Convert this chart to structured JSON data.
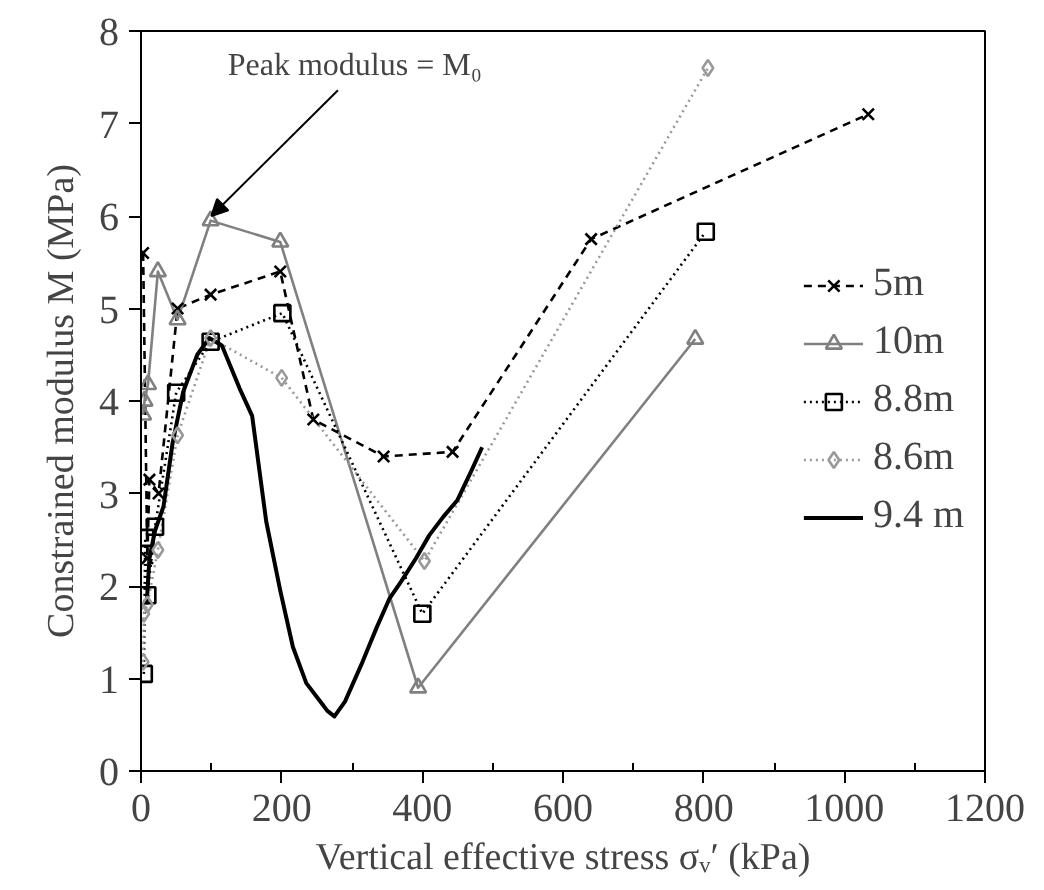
{
  "chart_data": {
    "type": "line",
    "xlabel": "Vertical effective stress σᵥ′ (kPa)",
    "ylabel": "Constrained modulus M (MPa)",
    "xlim": [
      0,
      1200
    ],
    "xticks": [
      0,
      200,
      400,
      600,
      800,
      1000,
      1200
    ],
    "ylim": [
      0,
      8
    ],
    "yticks": [
      0,
      1,
      2,
      3,
      4,
      5,
      6,
      7,
      8
    ],
    "grid": false,
    "legend": "right",
    "annotations": [
      {
        "text": "Peak modulus = M₀",
        "x": 100,
        "y": 6.0
      }
    ],
    "series": [
      {
        "name": "5m",
        "color": "#000000",
        "marker": "cross",
        "line_style": "dashed",
        "x": [
          3,
          9,
          12,
          25,
          52,
          99,
          198,
          245,
          345,
          443,
          640,
          1034
        ],
        "values": [
          5.6,
          2.3,
          3.15,
          3.0,
          5.0,
          5.15,
          5.4,
          3.8,
          3.4,
          3.45,
          5.75,
          7.1
        ]
      },
      {
        "name": "10m",
        "color": "#808080",
        "marker": "triangle",
        "line_style": "solid",
        "x": [
          3,
          5,
          10,
          24,
          52,
          99,
          198,
          394,
          788
        ],
        "values": [
          3.85,
          4.0,
          4.18,
          5.4,
          4.88,
          5.95,
          5.72,
          0.9,
          4.67
        ]
      },
      {
        "name": "8.8m",
        "color": "#000000",
        "marker": "square",
        "line_style": "dotted",
        "x": [
          4,
          6,
          9,
          20,
          50,
          99,
          201,
          400,
          803
        ],
        "values": [
          1.05,
          2.52,
          1.9,
          2.64,
          4.09,
          4.64,
          4.95,
          1.7,
          5.83
        ]
      },
      {
        "name": "8.6m",
        "color": "#999999",
        "marker": "diamond",
        "line_style": "dotted",
        "x": [
          3,
          4,
          9,
          24,
          52,
          99,
          200,
          403,
          806
        ],
        "values": [
          1.18,
          1.7,
          1.8,
          2.39,
          3.63,
          4.68,
          4.25,
          2.27,
          7.6
        ]
      },
      {
        "name": "9.4 m",
        "color": "#000000",
        "marker": "none",
        "line_style": "solid",
        "x": [
          8,
          12,
          20,
          32,
          45,
          60,
          80,
          97,
          115,
          140,
          158,
          178,
          198,
          216,
          235,
          256,
          265,
          275,
          290,
          315,
          335,
          353,
          370,
          391,
          410,
          430,
          450,
          470,
          485
        ],
        "values": [
          1.8,
          2.3,
          2.6,
          2.86,
          3.55,
          4.1,
          4.5,
          4.68,
          4.6,
          4.14,
          3.84,
          2.7,
          1.95,
          1.34,
          0.95,
          0.74,
          0.65,
          0.59,
          0.75,
          1.18,
          1.55,
          1.86,
          2.05,
          2.3,
          2.55,
          2.75,
          2.93,
          3.25,
          3.5
        ]
      }
    ]
  }
}
